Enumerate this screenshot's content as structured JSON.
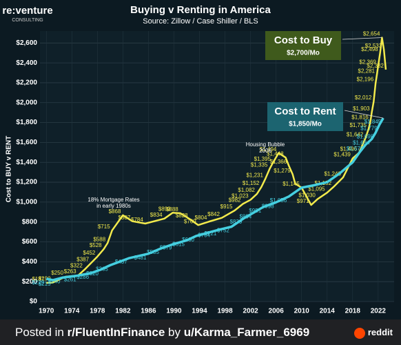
{
  "logo": {
    "name": "re:venture",
    "tagline": "CONSULTING"
  },
  "chart_data": {
    "type": "line",
    "title": "Buying v Renting in America",
    "subtitle": "Source: Zillow / Case Shiller / BLS",
    "y_label": "Cost to BUY v RENT",
    "xlim": [
      1969,
      2024.5
    ],
    "ylim": [
      0,
      2720
    ],
    "xticks": [
      1970,
      1974,
      1978,
      1982,
      1986,
      1990,
      1994,
      1998,
      2002,
      2006,
      2010,
      2014,
      2018,
      2022
    ],
    "yticks": [
      {
        "value": 0,
        "label": "$0"
      },
      {
        "value": 200,
        "label": "$200"
      },
      {
        "value": 400,
        "label": "$400"
      },
      {
        "value": 600,
        "label": "$600"
      },
      {
        "value": 800,
        "label": "$800"
      },
      {
        "value": 1000,
        "label": "$1,000"
      },
      {
        "value": 1200,
        "label": "$1,200"
      },
      {
        "value": 1400,
        "label": "$1,400"
      },
      {
        "value": 1600,
        "label": "$1,600"
      },
      {
        "value": 1800,
        "label": "$1,800"
      },
      {
        "value": 2000,
        "label": "$2,000"
      },
      {
        "value": 2200,
        "label": "$2,200"
      },
      {
        "value": 2400,
        "label": "$2,400"
      },
      {
        "value": 2600,
        "label": "$2,600"
      }
    ],
    "grid": true,
    "series": [
      {
        "name": "Cost to Buy",
        "color": "#f2ea4c",
        "x": [
          1970,
          1971,
          1973,
          1975,
          1976,
          1977,
          1978,
          1979,
          1979.6,
          1980.3,
          1982,
          1983.5,
          1985.5,
          1988.5,
          1989.8,
          1991,
          1992.5,
          1993.8,
          1995.5,
          1997.5,
          1999.5,
          2000.8,
          2002,
          2003,
          2003.7,
          2004.3,
          2005,
          2005.5,
          2006.4,
          2007.5,
          2008,
          2008.6,
          2009,
          2010,
          2011.5,
          2012.5,
          2014,
          2015,
          2016.5,
          2018,
          2019,
          2020,
          2020.5,
          2020.8,
          2021,
          2021.3,
          2021.6,
          2021.8,
          2022,
          2022.3,
          2022.6,
          2022.9,
          2023.2
        ],
        "values": [
          187,
          190,
          250,
          263,
          322,
          387,
          452,
          528,
          588,
          715,
          868,
          807,
          784,
          834,
          893,
          888,
          828,
          769,
          804,
          842,
          915,
          982,
          1023,
          1082,
          1152,
          1231,
          1335,
          1395,
          1494,
          1448,
          1366,
          1279,
          1185,
          1145,
          971,
          1030,
          1095,
          1152,
          1248,
          1439,
          1496,
          1642,
          1735,
          1816,
          1903,
          2012,
          2196,
          2281,
          2369,
          2498,
          2654,
          2533,
          2332
        ],
        "value_labels": [
          "$187",
          "$190",
          "$250",
          "$263",
          "$322",
          "$387",
          "$452",
          "$528",
          "$588",
          "$715",
          "$868",
          "$807",
          "$784",
          "$834",
          "$893",
          "$888",
          "$828",
          "$769",
          "$804",
          "$842",
          "$915",
          "$982",
          "$1,023",
          "$1,082",
          "$1,152",
          "$1,231",
          "$1,335",
          "$1,395",
          "$1,494",
          "$1,448",
          "$1,366",
          "$1,279",
          null,
          "$1,145",
          "$971",
          "$1,030",
          "$1,095",
          "$1,152",
          "$1,248",
          "$1,439",
          "$1,496",
          "$1,642",
          "$1,735",
          "$1,816",
          "$1,903",
          "$2,012",
          "$2,196",
          "$2,281",
          "$2,369",
          "$2,498",
          "$2,654",
          "$2,533",
          "$2,332"
        ]
      },
      {
        "name": "Cost to Rent",
        "color": "#45cfe0",
        "x": [
          1970,
          1971,
          1972.5,
          1975,
          1977,
          1978.5,
          1980,
          1983,
          1986,
          1988,
          1990,
          1992,
          1993.5,
          1996,
          1997,
          1999,
          2001,
          2002.5,
          2004,
          2006,
          2008,
          2010,
          2012,
          2014,
          2016,
          2018,
          2019,
          2020,
          2021,
          2021.6,
          2022.2,
          2022.8
        ],
        "values": [
          229,
          215,
          240,
          261,
          286,
          320,
          365,
          437,
          481,
          535,
          579,
          615,
          660,
          704,
          721,
          752,
          839,
          894,
          951,
          998,
          1056,
          1145,
          1170,
          1200,
          1290,
          1400,
          1493,
          1575,
          1634,
          1698,
          1779,
          1845
        ],
        "value_labels": [
          "$229",
          "$215",
          "$240",
          "$261",
          "$286",
          "$320",
          "$365",
          "$437",
          "$481",
          "$535",
          "$579",
          "$615",
          "$660",
          "$704",
          "$721",
          "$752",
          "$839",
          "$894",
          "$951",
          "$998",
          "$1,056",
          null,
          null,
          null,
          null,
          null,
          null,
          "$1,575",
          "$1,634",
          "$1,698",
          "$1,779",
          "$1,845"
        ]
      }
    ],
    "annotations": [
      "18% Mortgage Rates",
      "in early 1980s",
      "Housing Bubble",
      "2006"
    ],
    "callouts": [
      {
        "title": "Cost to Buy",
        "subtitle": "$2,700/Mo"
      },
      {
        "title": "Cost to Rent",
        "subtitle": "$1,850/Mo"
      }
    ]
  },
  "footer": {
    "prefix": "Posted in",
    "subreddit": "r/FluentInFinance",
    "by": "by",
    "user": "u/Karma_Farmer_6969",
    "brand": "reddit"
  }
}
